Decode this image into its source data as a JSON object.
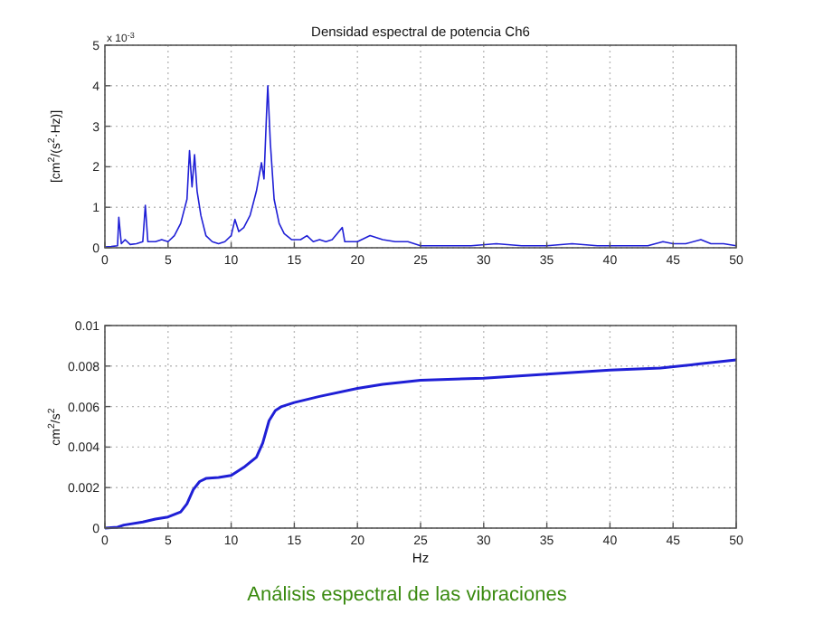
{
  "chart_data": [
    {
      "type": "line",
      "title": "Densidad espectral de potencia Ch6",
      "ylabel": "[cm$^{2}$/(s$^{2}$·Hz)]",
      "annotations": [
        "x 10$^{-3}$"
      ],
      "xlim": [
        0,
        50
      ],
      "xticks": [
        0,
        5,
        10,
        15,
        20,
        25,
        30,
        35,
        40,
        45,
        50
      ],
      "ylim": [
        0,
        5
      ],
      "yticks": [
        0,
        1,
        2,
        3,
        4,
        5
      ],
      "grid": true,
      "series": [
        {
          "color": "#1f1fd6",
          "x": [
            0,
            0.5,
            1,
            1.1,
            1.3,
            1.6,
            2,
            2.5,
            3,
            3.2,
            3.4,
            4,
            4.5,
            5,
            5.5,
            6,
            6.5,
            6.7,
            6.9,
            7.1,
            7.3,
            7.6,
            8,
            8.5,
            9,
            9.5,
            10,
            10.3,
            10.6,
            11,
            11.5,
            12,
            12.4,
            12.6,
            12.8,
            12.9,
            13.1,
            13.4,
            13.8,
            14.2,
            14.8,
            15.5,
            16,
            16.5,
            17,
            17.5,
            18,
            18.8,
            19,
            20,
            21,
            22,
            23,
            24,
            25,
            27,
            29,
            31,
            33,
            35,
            37,
            39,
            41,
            43,
            44.2,
            45,
            46,
            47.2,
            48,
            49,
            50
          ],
          "values": [
            0.02,
            0.03,
            0.05,
            0.75,
            0.1,
            0.2,
            0.08,
            0.1,
            0.15,
            1.05,
            0.15,
            0.15,
            0.2,
            0.15,
            0.3,
            0.6,
            1.2,
            2.4,
            1.5,
            2.3,
            1.4,
            0.8,
            0.3,
            0.15,
            0.1,
            0.15,
            0.3,
            0.7,
            0.4,
            0.5,
            0.8,
            1.4,
            2.1,
            1.7,
            3.3,
            4.0,
            2.6,
            1.2,
            0.6,
            0.35,
            0.2,
            0.2,
            0.3,
            0.15,
            0.2,
            0.15,
            0.2,
            0.5,
            0.15,
            0.15,
            0.3,
            0.2,
            0.15,
            0.15,
            0.05,
            0.05,
            0.05,
            0.1,
            0.05,
            0.05,
            0.1,
            0.05,
            0.05,
            0.05,
            0.15,
            0.1,
            0.1,
            0.2,
            0.1,
            0.1,
            0.05
          ]
        }
      ]
    },
    {
      "type": "line",
      "xlabel": "Hz",
      "ylabel": "cm$^{2}$/s$^{2}$",
      "annotations": [
        "Análisis espectral de las vibraciones"
      ],
      "xlim": [
        0,
        50
      ],
      "xticks": [
        0,
        5,
        10,
        15,
        20,
        25,
        30,
        35,
        40,
        45,
        50
      ],
      "ylim": [
        0,
        0.01
      ],
      "yticks": [
        0,
        0.002,
        0.004,
        0.006,
        0.008,
        0.01
      ],
      "grid": true,
      "series": [
        {
          "color": "#1f1fd6",
          "x": [
            0,
            1,
            1.5,
            3,
            4,
            5,
            6,
            6.5,
            7,
            7.5,
            8,
            9,
            10,
            11,
            12,
            12.5,
            13,
            13.5,
            14,
            15,
            17,
            20,
            22,
            25,
            30,
            35,
            40,
            44,
            47,
            50
          ],
          "values": [
            0,
            5e-05,
            0.00015,
            0.0003,
            0.00045,
            0.00055,
            0.0008,
            0.0012,
            0.0019,
            0.0023,
            0.00245,
            0.0025,
            0.0026,
            0.003,
            0.0035,
            0.0042,
            0.0053,
            0.0058,
            0.006,
            0.0062,
            0.0065,
            0.0069,
            0.0071,
            0.0073,
            0.0074,
            0.0076,
            0.0078,
            0.0079,
            0.0081,
            0.0083
          ]
        }
      ]
    }
  ]
}
